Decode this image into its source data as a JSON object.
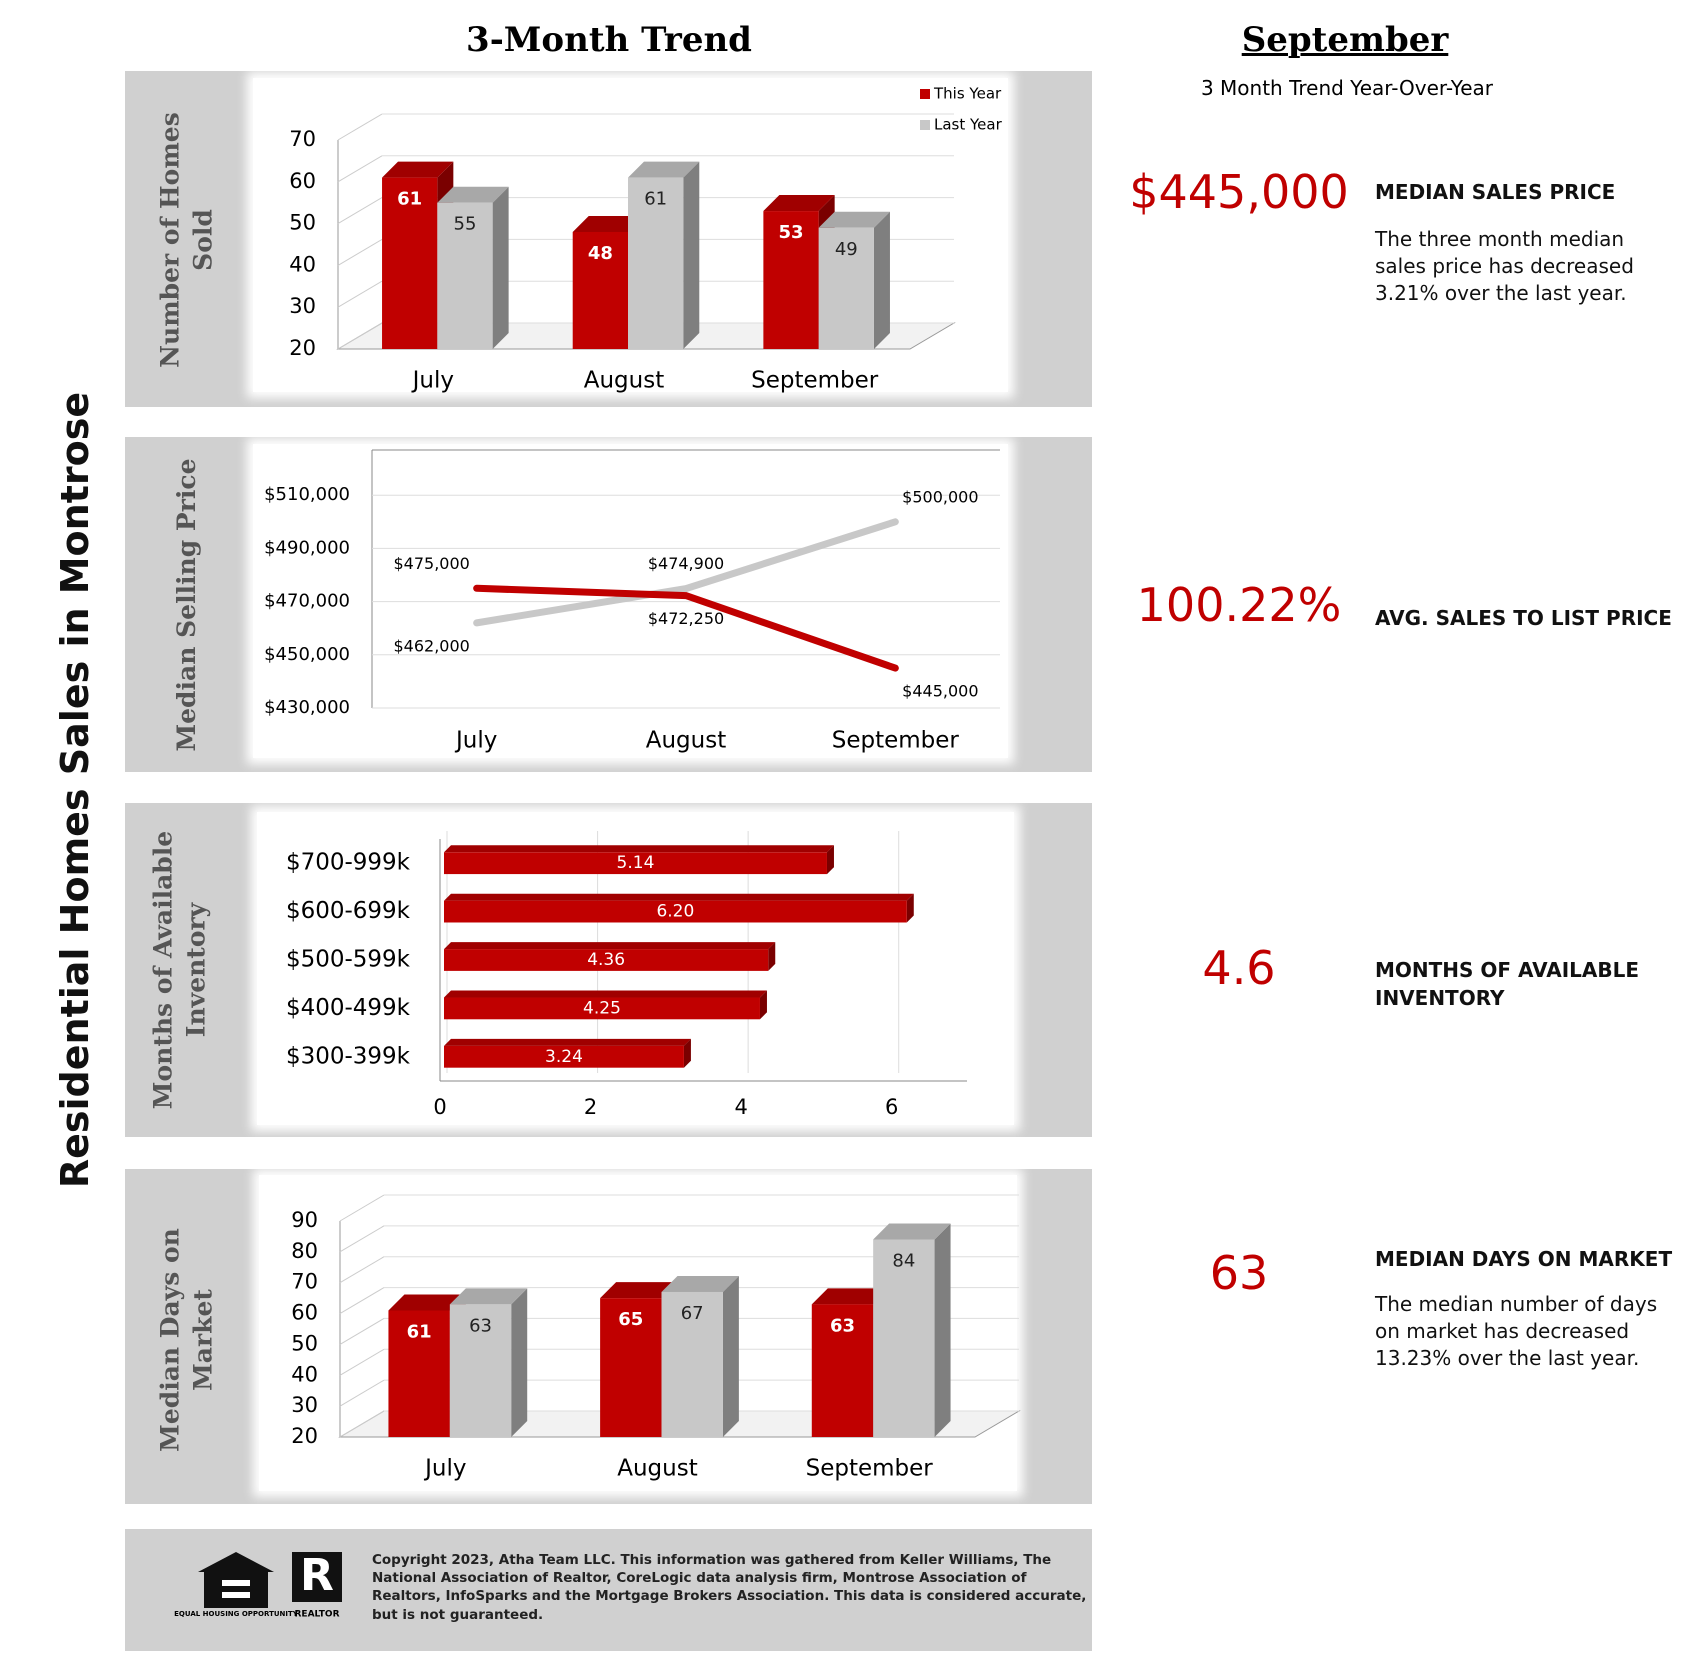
{
  "page_title": "Residential Homes Sales in Montrose",
  "trend_heading": "3-Month Trend",
  "chart_data": [
    {
      "type": "bar",
      "y_label": "Number of Homes Sold",
      "categories": [
        "July",
        "August",
        "September"
      ],
      "series": [
        {
          "name": "This Year",
          "color": "#c00000",
          "values": [
            61,
            48,
            53
          ]
        },
        {
          "name": "Last Year",
          "color": "#c8c8c8",
          "values": [
            55,
            61,
            49
          ]
        }
      ],
      "ylim": [
        20,
        70
      ],
      "yticks": [
        20,
        30,
        40,
        50,
        60,
        70
      ],
      "legend": "top-right"
    },
    {
      "type": "line",
      "y_label": "Median Selling Price",
      "categories": [
        "July",
        "August",
        "September"
      ],
      "series": [
        {
          "name": "This Year",
          "color": "#c00000",
          "values": [
            475000,
            472250,
            445000
          ],
          "value_labels": [
            "$475,000",
            "$472,250",
            "$445,000"
          ]
        },
        {
          "name": "Last Year",
          "color": "#c8c8c8",
          "values": [
            462000,
            474900,
            500000
          ],
          "value_labels": [
            "$462,000",
            "$474,900",
            "$500,000"
          ]
        }
      ],
      "ylim": [
        430000,
        527000
      ],
      "yticks": [
        {
          "value": 430000,
          "label": "$430,000"
        },
        {
          "value": 450000,
          "label": "$450,000"
        },
        {
          "value": 470000,
          "label": "$470,000"
        },
        {
          "value": 490000,
          "label": "$490,000"
        },
        {
          "value": 510000,
          "label": "$510,000"
        }
      ],
      "grid": true
    },
    {
      "type": "barh",
      "y_label": "Months of Available Inventory",
      "categories": [
        "$700-999k",
        "$600-699k",
        "$500-599k",
        "$400-499k",
        "$300-399k"
      ],
      "values": [
        5.14,
        6.2,
        4.36,
        4.25,
        3.24
      ],
      "value_labels": [
        "5.14",
        "6.20",
        "4.36",
        "4.25",
        "3.24"
      ],
      "color": "#c00000",
      "xlim": [
        0,
        7
      ],
      "xticks": [
        0,
        2,
        4,
        6
      ],
      "grid": true
    },
    {
      "type": "bar",
      "y_label": "Median Days on Market",
      "categories": [
        "July",
        "August",
        "September"
      ],
      "series": [
        {
          "name": "This Year",
          "color": "#c00000",
          "values": [
            61,
            65,
            63
          ]
        },
        {
          "name": "Last Year",
          "color": "#c8c8c8",
          "values": [
            63,
            67,
            84
          ]
        }
      ],
      "ylim": [
        20,
        90
      ],
      "yticks": [
        20,
        30,
        40,
        50,
        60,
        70,
        80,
        90
      ]
    }
  ],
  "summary": {
    "heading": "September",
    "subheading": "3 Month Trend Year-Over-Year",
    "items": [
      {
        "value": "$445,000",
        "label": "MEDIAN SALES PRICE",
        "text": "The three month median sales price has decreased 3.21% over the last year."
      },
      {
        "value": "100.22%",
        "label": "AVG. SALES TO LIST PRICE"
      },
      {
        "value": "4.6",
        "label": "MONTHS OF AVAILABLE INVENTORY"
      },
      {
        "value": "63",
        "label": "MEDIAN DAYS ON MARKET",
        "text": "The median number of days on market has decreased 13.23% over the last year."
      }
    ]
  },
  "footer": {
    "text": "Copyright 2023, Atha Team LLC. This information was gathered from Keller Williams, The National Association of Realtor, CoreLogic data analysis firm, Montrose Association of Realtors, InfoSparks and the Mortgage Brokers Association.  This data is considered accurate, but is not guaranteed.",
    "logo_1": "EQUAL HOUSING OPPORTUNITY",
    "logo_2": "REALTOR"
  }
}
